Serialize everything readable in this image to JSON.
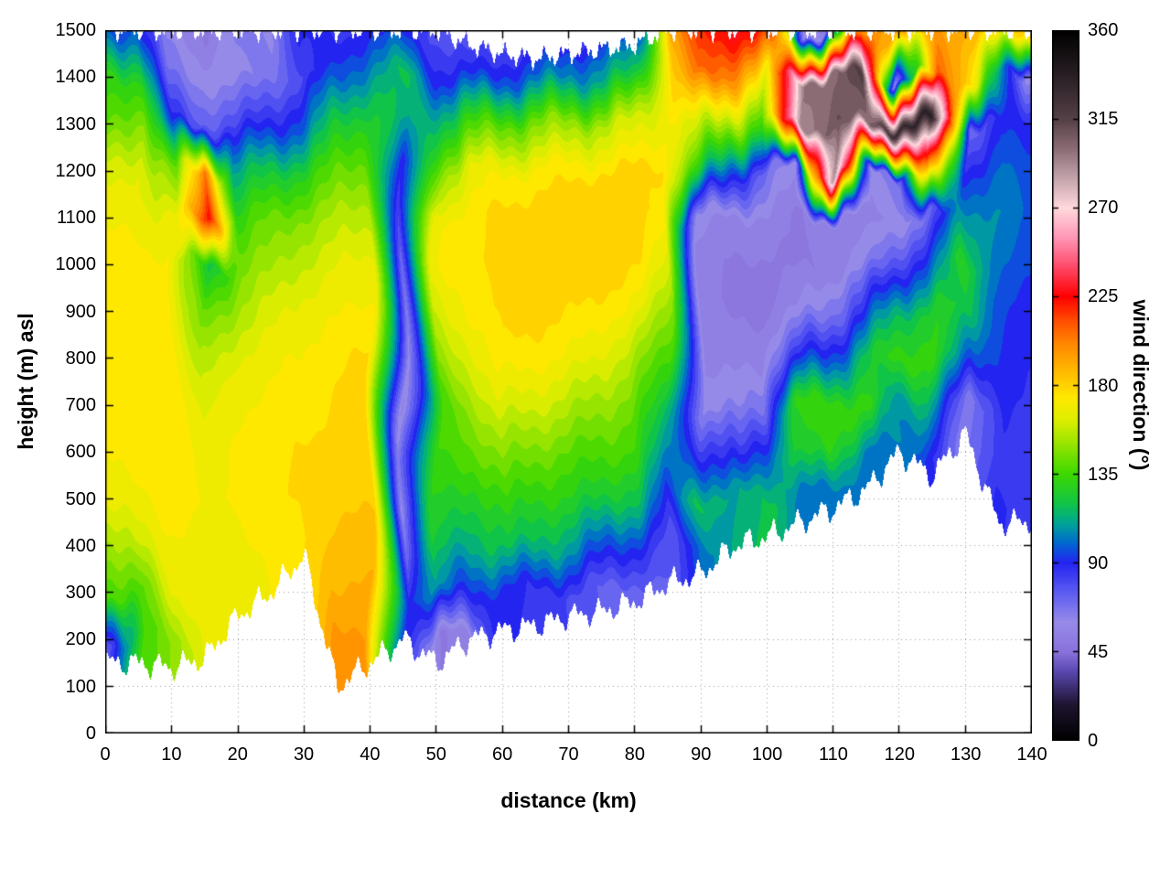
{
  "chart_data": {
    "type": "heatmap",
    "title": "",
    "xlabel": "distance (km)",
    "ylabel": "height (m) asl",
    "colorbar_label": "wind direction (°)",
    "xlim": [
      0,
      140
    ],
    "ylim": [
      0,
      1500
    ],
    "zlim": [
      0,
      360
    ],
    "grid": true,
    "xticks": [
      0,
      10,
      20,
      30,
      40,
      50,
      60,
      70,
      80,
      90,
      100,
      110,
      120,
      130,
      140
    ],
    "yticks": [
      0,
      100,
      200,
      300,
      400,
      500,
      600,
      700,
      800,
      900,
      1000,
      1100,
      1200,
      1300,
      1400,
      1500
    ],
    "colorbar_ticks": [
      0,
      45,
      90,
      135,
      180,
      225,
      270,
      315,
      360
    ],
    "x_km": [
      0,
      5,
      10,
      15,
      20,
      25,
      30,
      35,
      40,
      45,
      50,
      55,
      60,
      65,
      70,
      75,
      80,
      85,
      90,
      95,
      100,
      105,
      110,
      115,
      120,
      125,
      130,
      135,
      140
    ],
    "y_m": [
      0,
      100,
      200,
      300,
      400,
      500,
      600,
      700,
      800,
      900,
      1000,
      1100,
      1200,
      1300,
      1400,
      1500
    ],
    "terrain_bottom_m": [
      150,
      150,
      140,
      160,
      250,
      300,
      380,
      100,
      150,
      200,
      150,
      200,
      220,
      230,
      250,
      260,
      280,
      320,
      340,
      400,
      420,
      450,
      480,
      520,
      600,
      550,
      640,
      450,
      450
    ],
    "data_top_m": [
      1500,
      1500,
      1500,
      1500,
      1500,
      1500,
      1500,
      1500,
      1500,
      1500,
      1500,
      1470,
      1450,
      1440,
      1450,
      1460,
      1470,
      1500,
      1500,
      1500,
      1500,
      1500,
      1500,
      1500,
      1500,
      1500,
      1500,
      1500,
      1500
    ],
    "wind_direction_deg_columns": [
      [
        null,
        null,
        60,
        135,
        150,
        165,
        170,
        172,
        174,
        175,
        172,
        170,
        160,
        140,
        130,
        95
      ],
      [
        null,
        null,
        135,
        140,
        160,
        170,
        174,
        175,
        175,
        175,
        174,
        170,
        165,
        150,
        130,
        100
      ],
      [
        null,
        null,
        150,
        165,
        170,
        174,
        175,
        175,
        175,
        175,
        172,
        165,
        140,
        90,
        70,
        60
      ],
      [
        null,
        null,
        165,
        168,
        170,
        170,
        167,
        162,
        152,
        140,
        120,
        225,
        205,
        75,
        60,
        50
      ],
      [
        null,
        null,
        null,
        165,
        170,
        172,
        172,
        170,
        165,
        155,
        145,
        130,
        110,
        80,
        60,
        70
      ],
      [
        null,
        null,
        null,
        null,
        172,
        175,
        175,
        172,
        170,
        162,
        150,
        140,
        120,
        90,
        70,
        60
      ],
      [
        null,
        null,
        null,
        null,
        175,
        178,
        178,
        175,
        172,
        168,
        158,
        148,
        130,
        100,
        80,
        90
      ],
      [
        null,
        null,
        200,
        190,
        185,
        182,
        180,
        178,
        175,
        170,
        165,
        155,
        140,
        120,
        95,
        85
      ],
      [
        null,
        null,
        195,
        190,
        185,
        182,
        180,
        180,
        178,
        172,
        168,
        158,
        145,
        130,
        110,
        90
      ],
      [
        null,
        null,
        null,
        90,
        70,
        60,
        65,
        55,
        60,
        65,
        70,
        80,
        90,
        110,
        120,
        90
      ],
      [
        null,
        null,
        50,
        110,
        125,
        130,
        135,
        135,
        150,
        160,
        170,
        170,
        150,
        120,
        90,
        80
      ],
      [
        null,
        null,
        55,
        90,
        110,
        125,
        140,
        150,
        160,
        170,
        175,
        175,
        165,
        130,
        90,
        70
      ],
      [
        null,
        null,
        null,
        90,
        120,
        135,
        150,
        165,
        175,
        180,
        182,
        180,
        170,
        140,
        95,
        75
      ],
      [
        null,
        null,
        null,
        85,
        115,
        130,
        145,
        160,
        172,
        180,
        183,
        182,
        172,
        145,
        100,
        75
      ],
      [
        null,
        null,
        null,
        80,
        110,
        128,
        140,
        155,
        170,
        178,
        183,
        183,
        175,
        150,
        105,
        80
      ],
      [
        null,
        null,
        null,
        75,
        100,
        125,
        138,
        150,
        165,
        175,
        182,
        183,
        178,
        155,
        110,
        85
      ],
      [
        null,
        null,
        null,
        70,
        90,
        115,
        132,
        142,
        155,
        168,
        178,
        182,
        178,
        160,
        120,
        95
      ],
      [
        null,
        null,
        null,
        null,
        75,
        90,
        110,
        125,
        135,
        145,
        160,
        172,
        178,
        168,
        180,
        190
      ],
      [
        null,
        null,
        null,
        null,
        100,
        120,
        90,
        60,
        55,
        55,
        55,
        60,
        120,
        160,
        210,
        220
      ],
      [
        null,
        null,
        null,
        null,
        null,
        110,
        80,
        60,
        55,
        50,
        50,
        55,
        90,
        150,
        200,
        225
      ],
      [
        null,
        null,
        null,
        null,
        null,
        120,
        100,
        70,
        55,
        50,
        50,
        55,
        70,
        130,
        170,
        225
      ],
      [
        null,
        null,
        null,
        null,
        null,
        100,
        125,
        130,
        90,
        60,
        50,
        50,
        60,
        290,
        300,
        60
      ],
      [
        null,
        null,
        null,
        null,
        null,
        100,
        130,
        135,
        100,
        70,
        52,
        55,
        290,
        310,
        300,
        55
      ],
      [
        null,
        null,
        null,
        null,
        null,
        null,
        100,
        132,
        120,
        85,
        60,
        55,
        60,
        300,
        320,
        200
      ],
      [
        null,
        null,
        null,
        null,
        null,
        null,
        null,
        105,
        132,
        115,
        85,
        60,
        70,
        330,
        60,
        190
      ],
      [
        null,
        null,
        null,
        null,
        null,
        null,
        90,
        115,
        132,
        128,
        100,
        70,
        215,
        340,
        210,
        195
      ],
      [
        null,
        null,
        null,
        null,
        null,
        null,
        null,
        65,
        95,
        120,
        130,
        110,
        90,
        70,
        180,
        190
      ],
      [
        null,
        null,
        null,
        null,
        null,
        88,
        85,
        88,
        92,
        96,
        102,
        105,
        100,
        90,
        120,
        185
      ],
      [
        null,
        null,
        null,
        null,
        null,
        85,
        84,
        86,
        88,
        90,
        94,
        95,
        95,
        90,
        60,
        180
      ]
    ],
    "colormap_stops": [
      [
        0,
        "#000000"
      ],
      [
        18,
        "#1e1430"
      ],
      [
        35,
        "#5a48b0"
      ],
      [
        45,
        "#8a72dc"
      ],
      [
        60,
        "#968ae8"
      ],
      [
        75,
        "#5c5cf2"
      ],
      [
        90,
        "#2424f0"
      ],
      [
        100,
        "#0068d0"
      ],
      [
        110,
        "#00a496"
      ],
      [
        120,
        "#10c448"
      ],
      [
        135,
        "#3cd800"
      ],
      [
        150,
        "#96e400"
      ],
      [
        163,
        "#e0ee00"
      ],
      [
        174,
        "#ffe800"
      ],
      [
        185,
        "#ffc000"
      ],
      [
        200,
        "#ff8c00"
      ],
      [
        212,
        "#ff5200"
      ],
      [
        225,
        "#ff0000"
      ],
      [
        240,
        "#ff4868"
      ],
      [
        255,
        "#ff96b6"
      ],
      [
        270,
        "#ffd8dc"
      ],
      [
        285,
        "#c4a4ac"
      ],
      [
        300,
        "#8c6c74"
      ],
      [
        315,
        "#544046"
      ],
      [
        335,
        "#2c2228"
      ],
      [
        360,
        "#000000"
      ]
    ]
  }
}
